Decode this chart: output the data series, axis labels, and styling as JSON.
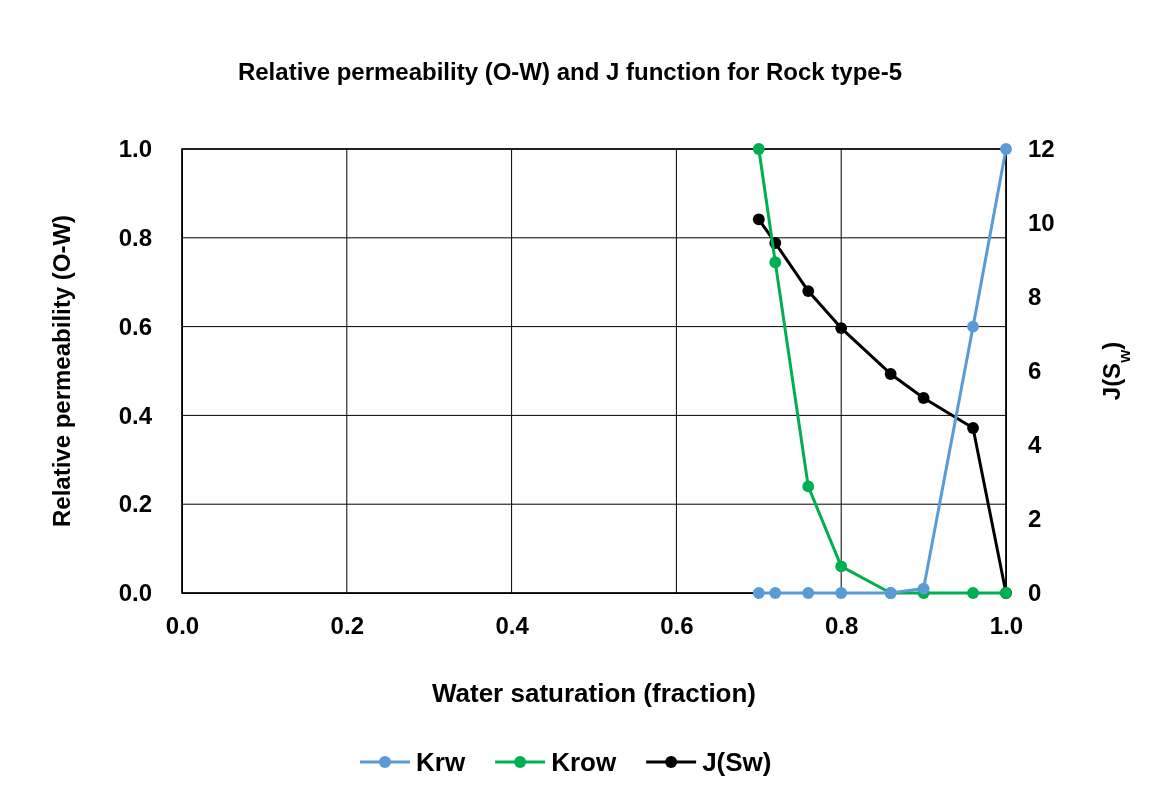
{
  "chart_data": {
    "type": "line",
    "title": "Relative permeability (O-W) and J function for Rock type-5",
    "xlabel": "Water saturation (fraction)",
    "ylabel": "Relative permeability (O-W)",
    "y2label": "J(S$_{w}$)",
    "x": [
      0.7,
      0.72,
      0.76,
      0.8,
      0.86,
      0.9,
      0.96,
      1.0
    ],
    "xlim": [
      0,
      1
    ],
    "xticks": [
      {
        "value": 0,
        "label": "0.0"
      },
      {
        "value": 0.2,
        "label": "0.2"
      },
      {
        "value": 0.4,
        "label": "0.4"
      },
      {
        "value": 0.6,
        "label": "0.6"
      },
      {
        "value": 0.8,
        "label": "0.8"
      },
      {
        "value": 1,
        "label": "1.0"
      }
    ],
    "ylim": [
      0,
      1
    ],
    "yticks": [
      {
        "value": 0,
        "label": "0.0"
      },
      {
        "value": 0.2,
        "label": "0.2"
      },
      {
        "value": 0.4,
        "label": "0.4"
      },
      {
        "value": 0.6,
        "label": "0.6"
      },
      {
        "value": 0.8,
        "label": "0.8"
      },
      {
        "value": 1,
        "label": "1.0"
      }
    ],
    "y2lim": [
      0,
      12
    ],
    "y2ticks": [
      0,
      2,
      4,
      6,
      8,
      10,
      12
    ],
    "grid": true,
    "legend": "bottom",
    "marker": "circle",
    "line_style": "solid",
    "series": [
      {
        "name": "Krw",
        "color": "#5b9bd5",
        "values": [
          0,
          0,
          0,
          0,
          0,
          0.01,
          0.6,
          1.0
        ]
      },
      {
        "name": "Krow",
        "color": "#00b050",
        "values": [
          1.0,
          0.745,
          0.24,
          0.06,
          0,
          0,
          0,
          0
        ]
      },
      {
        "name": "J(Sw)",
        "color": "#000000",
        "axis": "y2",
        "values": [
          10.1,
          9.46,
          8.16,
          7.16,
          5.92,
          5.27,
          4.46,
          0
        ]
      }
    ]
  }
}
